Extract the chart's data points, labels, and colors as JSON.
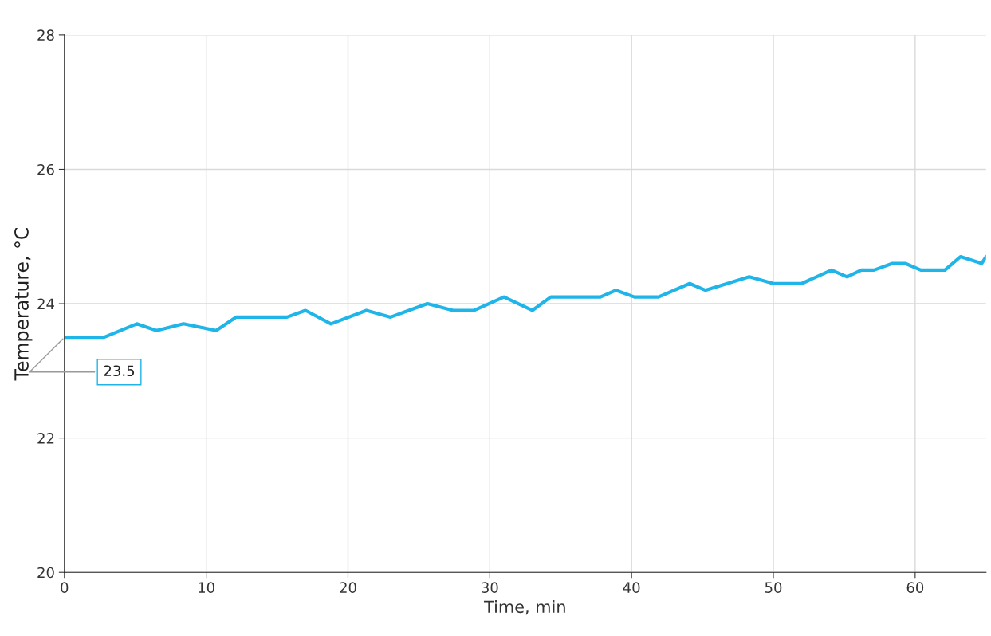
{
  "chart_data": {
    "type": "line",
    "xlabel": "Time, min",
    "ylabel": "Temperature, °C",
    "x": [
      0,
      2.8,
      5.1,
      6.5,
      8.4,
      10.7,
      12.1,
      15.7,
      17.0,
      18.8,
      21.3,
      23.0,
      25.6,
      27.4,
      28.9,
      31.0,
      33.0,
      34.3,
      37.8,
      38.9,
      40.2,
      41.9,
      44.1,
      45.2,
      48.3,
      50.0,
      52.0,
      54.1,
      55.2,
      56.2,
      57.1,
      58.4,
      59.3,
      60.4,
      62.1,
      63.2,
      64.7,
      65
    ],
    "series": [
      {
        "color": "#1fb5e8",
        "values": [
          23.5,
          23.5,
          23.7,
          23.6,
          23.7,
          23.6,
          23.8,
          23.8,
          23.9,
          23.7,
          23.9,
          23.8,
          24.0,
          23.9,
          23.9,
          24.1,
          23.9,
          24.1,
          24.1,
          24.2,
          24.1,
          24.1,
          24.3,
          24.2,
          24.4,
          24.3,
          24.3,
          24.5,
          24.4,
          24.5,
          24.5,
          24.6,
          24.6,
          24.5,
          24.5,
          24.7,
          24.6,
          24.7
        ]
      }
    ],
    "annotations": [
      {
        "text": "23.5",
        "x": 0,
        "y": 23.5
      }
    ],
    "xlim": [
      0,
      65
    ],
    "xticks": [
      0,
      10,
      20,
      30,
      40,
      50,
      60
    ],
    "ylim": [
      20,
      28
    ],
    "yticks": [
      20,
      22,
      24,
      26,
      28
    ],
    "grid": true,
    "legend": false,
    "marker": "none",
    "line_style": "solid"
  }
}
